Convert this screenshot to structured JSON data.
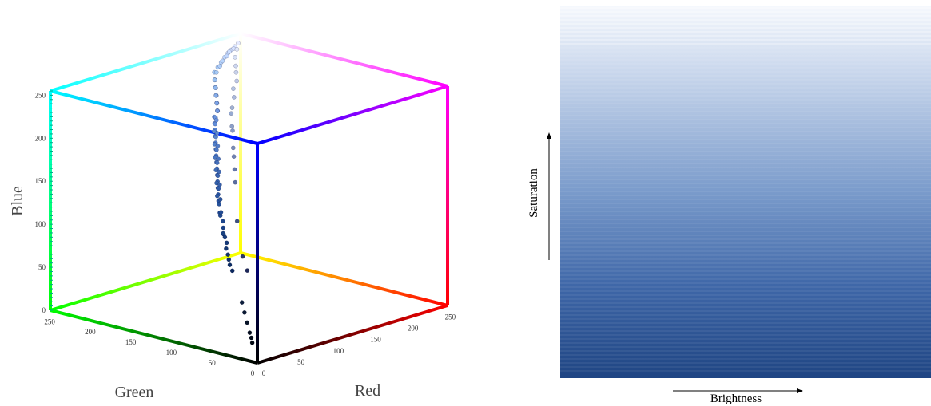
{
  "chart_data": [
    {
      "type": "scatter",
      "projection": "3d-rgb-cube",
      "axes": {
        "red": {
          "label": "Red",
          "range": [
            0,
            255
          ],
          "ticks": [
            0,
            50,
            100,
            150,
            200,
            250
          ]
        },
        "green": {
          "label": "Green",
          "range": [
            0,
            255
          ],
          "ticks": [
            0,
            50,
            100,
            150,
            200,
            250
          ]
        },
        "blue": {
          "label": "Blue",
          "range": [
            0,
            255
          ],
          "ticks": [
            0,
            50,
            100,
            150,
            200,
            250
          ]
        }
      },
      "cube_edge_colors": {
        "black": "#000000",
        "red": "#ff0000",
        "green": "#00ff00",
        "blue": "#0000ff",
        "yellow": "#ffff00",
        "magenta": "#ff00ff",
        "cyan": "#00ffff",
        "white": "#ffffff"
      },
      "points": [
        [
          20,
          60,
          130
        ],
        [
          25,
          65,
          135
        ],
        [
          30,
          70,
          140
        ],
        [
          22,
          58,
          120
        ],
        [
          28,
          72,
          150
        ],
        [
          35,
          80,
          160
        ],
        [
          40,
          85,
          165
        ],
        [
          45,
          90,
          170
        ],
        [
          50,
          95,
          175
        ],
        [
          55,
          100,
          180
        ],
        [
          60,
          105,
          185
        ],
        [
          65,
          110,
          190
        ],
        [
          70,
          115,
          195
        ],
        [
          75,
          120,
          200
        ],
        [
          80,
          125,
          205
        ],
        [
          85,
          130,
          210
        ],
        [
          90,
          135,
          215
        ],
        [
          95,
          140,
          220
        ],
        [
          100,
          145,
          225
        ],
        [
          110,
          150,
          228
        ],
        [
          120,
          160,
          232
        ],
        [
          130,
          170,
          236
        ],
        [
          140,
          180,
          240
        ],
        [
          150,
          190,
          244
        ],
        [
          160,
          200,
          248
        ],
        [
          170,
          205,
          250
        ],
        [
          180,
          210,
          252
        ],
        [
          190,
          215,
          254
        ],
        [
          200,
          220,
          255
        ],
        [
          210,
          225,
          255
        ],
        [
          220,
          230,
          255
        ],
        [
          230,
          235,
          255
        ],
        [
          15,
          50,
          110
        ],
        [
          18,
          55,
          115
        ],
        [
          24,
          62,
          125
        ],
        [
          32,
          75,
          145
        ],
        [
          38,
          82,
          155
        ],
        [
          42,
          88,
          162
        ],
        [
          48,
          92,
          168
        ],
        [
          52,
          98,
          172
        ],
        [
          58,
          102,
          178
        ],
        [
          62,
          108,
          182
        ],
        [
          68,
          112,
          188
        ],
        [
          72,
          118,
          192
        ],
        [
          78,
          122,
          198
        ],
        [
          82,
          128,
          202
        ],
        [
          88,
          132,
          208
        ],
        [
          92,
          138,
          212
        ],
        [
          98,
          142,
          218
        ],
        [
          105,
          148,
          222
        ],
        [
          115,
          155,
          226
        ],
        [
          125,
          165,
          230
        ],
        [
          135,
          175,
          234
        ],
        [
          145,
          185,
          238
        ],
        [
          155,
          195,
          242
        ],
        [
          165,
          202,
          246
        ],
        [
          12,
          45,
          100
        ],
        [
          10,
          40,
          95
        ],
        [
          14,
          48,
          105
        ],
        [
          26,
          66,
          128
        ],
        [
          34,
          76,
          148
        ],
        [
          44,
          86,
          158
        ],
        [
          54,
          96,
          170
        ],
        [
          64,
          106,
          180
        ],
        [
          74,
          116,
          190
        ],
        [
          84,
          126,
          200
        ],
        [
          94,
          136,
          210
        ],
        [
          104,
          146,
          220
        ],
        [
          114,
          154,
          226
        ],
        [
          124,
          164,
          230
        ],
        [
          134,
          174,
          234
        ],
        [
          144,
          184,
          238
        ],
        [
          154,
          194,
          242
        ],
        [
          174,
          206,
          250
        ],
        [
          184,
          212,
          252
        ],
        [
          194,
          216,
          254
        ],
        [
          204,
          222,
          255
        ],
        [
          214,
          226,
          255
        ],
        [
          8,
          20,
          40
        ],
        [
          6,
          15,
          30
        ],
        [
          5,
          12,
          25
        ],
        [
          4,
          10,
          20
        ],
        [
          10,
          25,
          50
        ],
        [
          12,
          30,
          60
        ],
        [
          30,
          40,
          90
        ],
        [
          40,
          55,
          100
        ],
        [
          60,
          80,
          130
        ],
        [
          90,
          110,
          160
        ],
        [
          110,
          130,
          180
        ],
        [
          130,
          150,
          200
        ],
        [
          150,
          170,
          210
        ],
        [
          170,
          185,
          220
        ],
        [
          190,
          200,
          230
        ],
        [
          205,
          215,
          240
        ],
        [
          215,
          225,
          245
        ],
        [
          225,
          232,
          250
        ],
        [
          100,
          120,
          170
        ],
        [
          120,
          140,
          185
        ],
        [
          140,
          160,
          200
        ],
        [
          160,
          178,
          212
        ],
        [
          180,
          195,
          225
        ],
        [
          200,
          210,
          235
        ]
      ]
    },
    {
      "type": "heatmap",
      "xlabel": "Brightness",
      "ylabel": "Saturation",
      "gradient_colors": {
        "top": "#f5f8fd",
        "upper": "#c8d6ec",
        "middle": "#7a9bcb",
        "lower": "#3f67a8",
        "bottom": "#1f4583"
      }
    }
  ]
}
